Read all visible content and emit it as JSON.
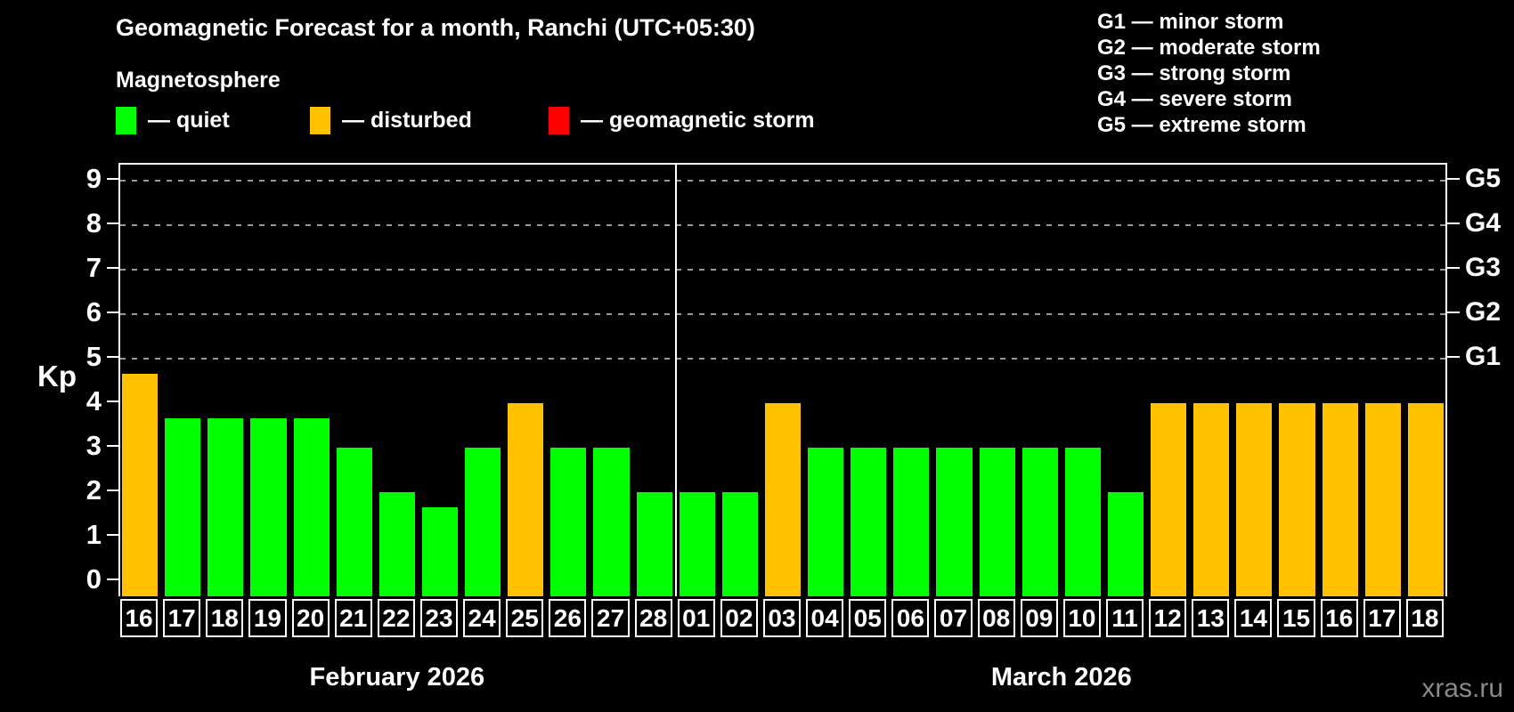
{
  "title": "Geomagnetic Forecast for a month, Ranchi (UTC+05:30)",
  "subtitle": "Magnetosphere",
  "legend": {
    "items": [
      {
        "name": "quiet",
        "label": "— quiet",
        "color": "#00ff00"
      },
      {
        "name": "disturbed",
        "label": "— disturbed",
        "color": "#ffc100"
      },
      {
        "name": "geomagnetic-storm",
        "label": "— geomagnetic storm",
        "color": "#ff0000"
      }
    ]
  },
  "gscale": [
    "G1 — minor storm",
    "G2 — moderate storm",
    "G3 — strong storm",
    "G4 — severe storm",
    "G5 — extreme storm"
  ],
  "watermark": "xras.ru",
  "chart_data": {
    "type": "bar",
    "ylabel": "Kp",
    "ylim": [
      0,
      9.3
    ],
    "yticks": [
      0,
      1,
      2,
      3,
      4,
      5,
      6,
      7,
      8,
      9
    ],
    "gridlines_at": [
      5,
      6,
      7,
      8,
      9
    ],
    "grid": "dashed horizontal at G-storm levels only",
    "right_axis_labels": [
      {
        "label": "G5",
        "kp": 9
      },
      {
        "label": "G4",
        "kp": 8
      },
      {
        "label": "G3",
        "kp": 7
      },
      {
        "label": "G2",
        "kp": 6
      },
      {
        "label": "G1",
        "kp": 5
      }
    ],
    "colors": {
      "quiet": "#00ff00",
      "disturbed": "#ffc100",
      "storm": "#ff0000"
    },
    "months": [
      {
        "label": "February 2026",
        "days": [
          {
            "day": "16",
            "kp": 4.67,
            "status": "disturbed"
          },
          {
            "day": "17",
            "kp": 3.67,
            "status": "quiet"
          },
          {
            "day": "18",
            "kp": 3.67,
            "status": "quiet"
          },
          {
            "day": "19",
            "kp": 3.67,
            "status": "quiet"
          },
          {
            "day": "20",
            "kp": 3.67,
            "status": "quiet"
          },
          {
            "day": "21",
            "kp": 3,
            "status": "quiet"
          },
          {
            "day": "22",
            "kp": 2,
            "status": "quiet"
          },
          {
            "day": "23",
            "kp": 1.67,
            "status": "quiet"
          },
          {
            "day": "24",
            "kp": 3,
            "status": "quiet"
          },
          {
            "day": "25",
            "kp": 4,
            "status": "disturbed"
          },
          {
            "day": "26",
            "kp": 3,
            "status": "quiet"
          },
          {
            "day": "27",
            "kp": 3,
            "status": "quiet"
          },
          {
            "day": "28",
            "kp": 2,
            "status": "quiet"
          }
        ]
      },
      {
        "label": "March 2026",
        "days": [
          {
            "day": "01",
            "kp": 2,
            "status": "quiet"
          },
          {
            "day": "02",
            "kp": 2,
            "status": "quiet"
          },
          {
            "day": "03",
            "kp": 4,
            "status": "disturbed"
          },
          {
            "day": "04",
            "kp": 3,
            "status": "quiet"
          },
          {
            "day": "05",
            "kp": 3,
            "status": "quiet"
          },
          {
            "day": "06",
            "kp": 3,
            "status": "quiet"
          },
          {
            "day": "07",
            "kp": 3,
            "status": "quiet"
          },
          {
            "day": "08",
            "kp": 3,
            "status": "quiet"
          },
          {
            "day": "09",
            "kp": 3,
            "status": "quiet"
          },
          {
            "day": "10",
            "kp": 3,
            "status": "quiet"
          },
          {
            "day": "11",
            "kp": 2,
            "status": "quiet"
          },
          {
            "day": "12",
            "kp": 4,
            "status": "disturbed"
          },
          {
            "day": "13",
            "kp": 4,
            "status": "disturbed"
          },
          {
            "day": "14",
            "kp": 4,
            "status": "disturbed"
          },
          {
            "day": "15",
            "kp": 4,
            "status": "disturbed"
          },
          {
            "day": "16",
            "kp": 4,
            "status": "disturbed"
          },
          {
            "day": "17",
            "kp": 4,
            "status": "disturbed"
          },
          {
            "day": "18",
            "kp": 4,
            "status": "disturbed"
          }
        ]
      }
    ]
  }
}
